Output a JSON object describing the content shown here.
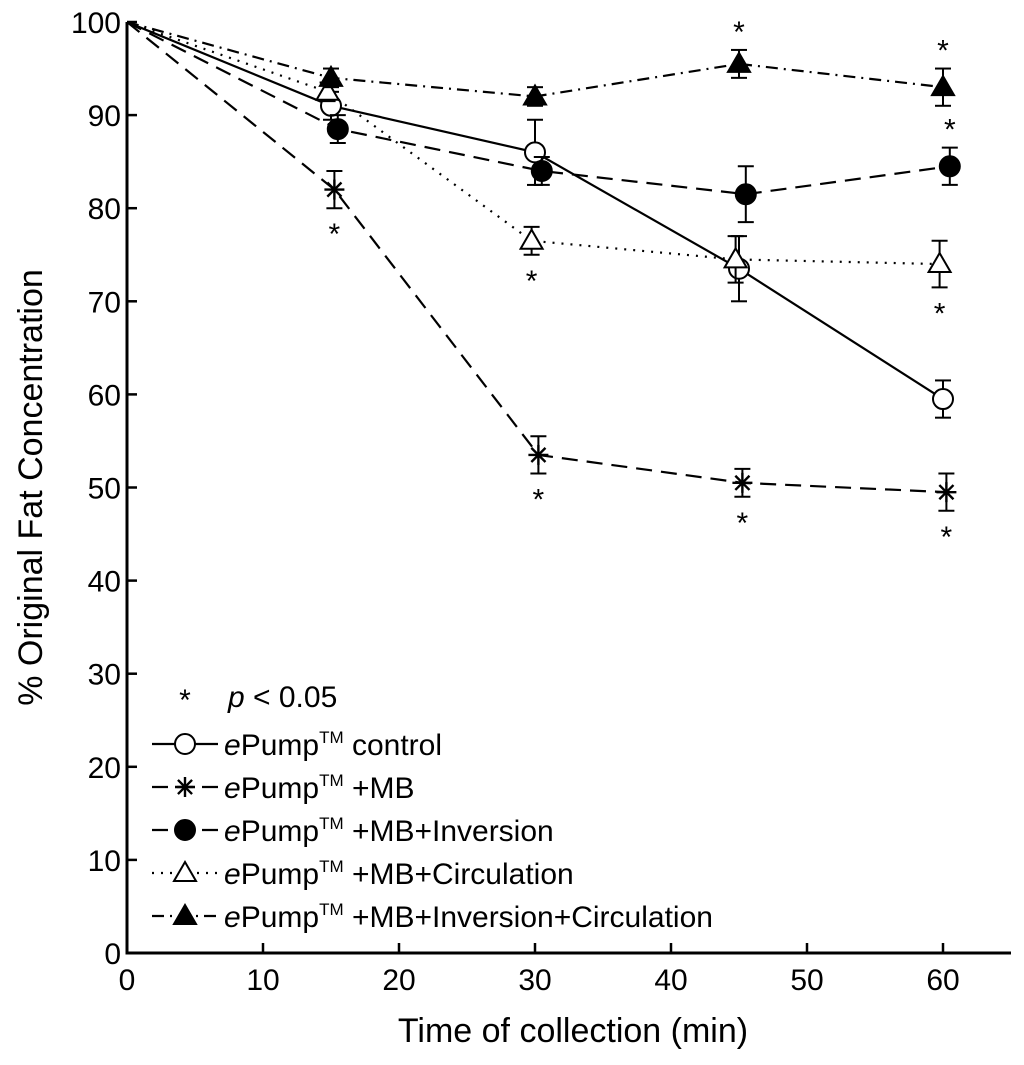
{
  "chart_data": {
    "type": "line",
    "title": "",
    "xlabel": "Time of collection (min)",
    "ylabel": "% Original Fat Concentration",
    "xlim": [
      0,
      65
    ],
    "ylim": [
      0,
      100
    ],
    "xticks": [
      0,
      10,
      20,
      30,
      40,
      50,
      60
    ],
    "yticks": [
      0,
      10,
      20,
      30,
      40,
      50,
      60,
      70,
      80,
      90,
      100
    ],
    "grid": false,
    "legend_position": "bottom-left",
    "significance_note": {
      "symbol": "*",
      "label": "p",
      "operator": " < 0.05"
    },
    "series": [
      {
        "name": "control",
        "legend_prefix": "e",
        "legend_brand": "Pump",
        "legend_sup": "TM",
        "legend_rest": " control",
        "marker": "open-circle",
        "line_style": "solid",
        "x": [
          0,
          15,
          30,
          45,
          60
        ],
        "y": [
          100,
          91,
          86,
          73.5,
          59.5
        ],
        "error": [
          0,
          1.5,
          3.5,
          3.5,
          2
        ],
        "significant": [
          false,
          false,
          false,
          false,
          false
        ]
      },
      {
        "name": "+MB",
        "legend_prefix": "e",
        "legend_brand": "Pump",
        "legend_sup": "TM",
        "legend_rest": " +MB",
        "marker": "asterisk",
        "line_style": "dashed",
        "x": [
          0,
          15,
          30,
          45,
          60
        ],
        "y": [
          100,
          82,
          53.5,
          50.5,
          49.5
        ],
        "error": [
          0,
          2,
          2,
          1.5,
          2
        ],
        "significant": [
          false,
          true,
          true,
          true,
          true
        ]
      },
      {
        "name": "+MB+Inversion",
        "legend_prefix": "e",
        "legend_brand": "Pump",
        "legend_sup": "TM",
        "legend_rest": " +MB+Inversion",
        "marker": "filled-circle",
        "line_style": "dashed",
        "x": [
          0,
          15,
          30,
          45,
          60
        ],
        "y": [
          100,
          88.5,
          84,
          81.5,
          84.5
        ],
        "error": [
          0,
          1.5,
          1.5,
          3,
          2
        ],
        "significant": [
          false,
          false,
          false,
          false,
          true
        ]
      },
      {
        "name": "+MB+Circulation",
        "legend_prefix": "e",
        "legend_brand": "Pump",
        "legend_sup": "TM",
        "legend_rest": " +MB+Circulation",
        "marker": "open-triangle",
        "line_style": "dotted",
        "x": [
          0,
          15,
          30,
          45,
          60
        ],
        "y": [
          100,
          92.5,
          76.5,
          74.5,
          74
        ],
        "error": [
          0,
          1,
          1.5,
          2.5,
          2.5
        ],
        "significant": [
          false,
          false,
          true,
          false,
          true
        ]
      },
      {
        "name": "+MB+Inversion+Circulation",
        "legend_prefix": "e",
        "legend_brand": "Pump",
        "legend_sup": "TM",
        "legend_rest": " +MB+Inversion+Circulation",
        "marker": "filled-triangle",
        "line_style": "dash-dot",
        "x": [
          0,
          15,
          30,
          45,
          60
        ],
        "y": [
          100,
          94,
          92,
          95.5,
          93
        ],
        "error": [
          0,
          1,
          1,
          1.5,
          2
        ],
        "significant": [
          false,
          false,
          false,
          true,
          true
        ]
      }
    ]
  }
}
